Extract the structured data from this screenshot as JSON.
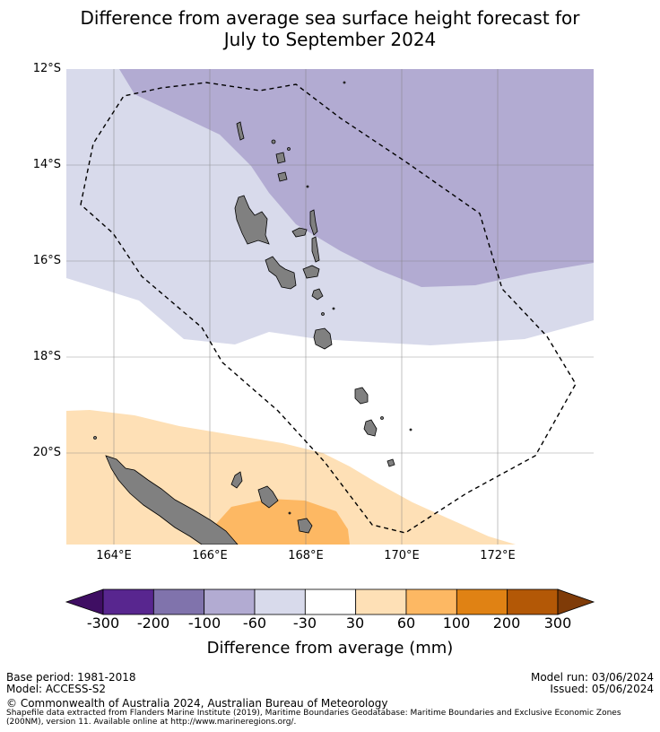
{
  "title": {
    "line1": "Difference from average sea surface height forecast for",
    "line2": "July to September 2024"
  },
  "axes": {
    "lat_labels": [
      "12°S",
      "14°S",
      "16°S",
      "18°S",
      "20°S"
    ],
    "lon_labels": [
      "164°E",
      "166°E",
      "168°E",
      "170°E",
      "172°E"
    ]
  },
  "colorbar": {
    "label": "Difference from average (mm)",
    "ticks": [
      "-300",
      "-200",
      "-100",
      "-60",
      "-30",
      "30",
      "60",
      "100",
      "200",
      "300"
    ],
    "colors": [
      "#3f0e63",
      "#58268f",
      "#8073ac",
      "#b2abd2",
      "#d8daeb",
      "#ffffff",
      "#fee0b6",
      "#fdb863",
      "#e08214",
      "#b35806",
      "#7f3b08"
    ]
  },
  "footer": {
    "base_period": "Base period: 1981-2018",
    "model": "Model: ACCESS-S2",
    "model_run": "Model run: 03/06/2024",
    "issued": "Issued: 05/06/2024",
    "copyright": "© Commonwealth of Australia 2024, Australian Bureau of Meteorology",
    "source_note": "Shapefile data extracted from Flanders Marine Institute (2019), Maritime Boundaries Geodatabase: Maritime Boundaries and Exclusive Economic Zones (200NM), version 11. Available online at http://www.marineregions.org/."
  },
  "map_colors": {
    "band_minus_100": "#b2abd2",
    "band_minus_60": "#d8daeb",
    "band_plus_30": "#fee0b6",
    "band_plus_60": "#fdb863",
    "land": "#808080",
    "grid": "#808080"
  }
}
